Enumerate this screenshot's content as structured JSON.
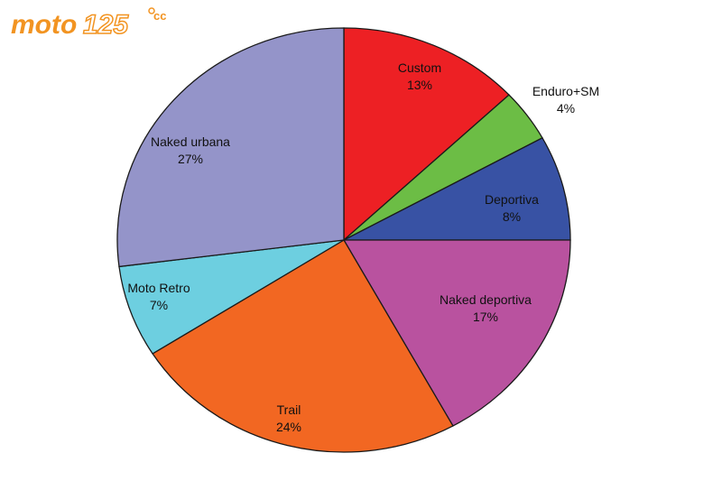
{
  "logo": {
    "text_main": "moto",
    "text_number": "125",
    "text_suffix": "cc",
    "color": "#f29422"
  },
  "chart_data": {
    "type": "pie",
    "title": "",
    "start_angle_deg": 0,
    "direction": "clockwise",
    "slices": [
      {
        "label": "Custom",
        "value": 13,
        "value_label": "13%",
        "color": "#ed2024"
      },
      {
        "label": "Enduro+SM",
        "value": 4,
        "value_label": "4%",
        "color": "#6cbd45"
      },
      {
        "label": "Deportiva",
        "value": 8,
        "value_label": "8%",
        "color": "#3852a4"
      },
      {
        "label": "Naked deportiva",
        "value": 17,
        "value_label": "17%",
        "color": "#b9529f"
      },
      {
        "label": "Trail",
        "value": 24,
        "value_label": "24%",
        "color": "#f26722"
      },
      {
        "label": "Moto Retro",
        "value": 7,
        "value_label": "7%",
        "color": "#6dcfe0"
      },
      {
        "label": "Naked urbana",
        "value": 27,
        "value_label": "27%",
        "color": "#9494c9"
      }
    ]
  }
}
